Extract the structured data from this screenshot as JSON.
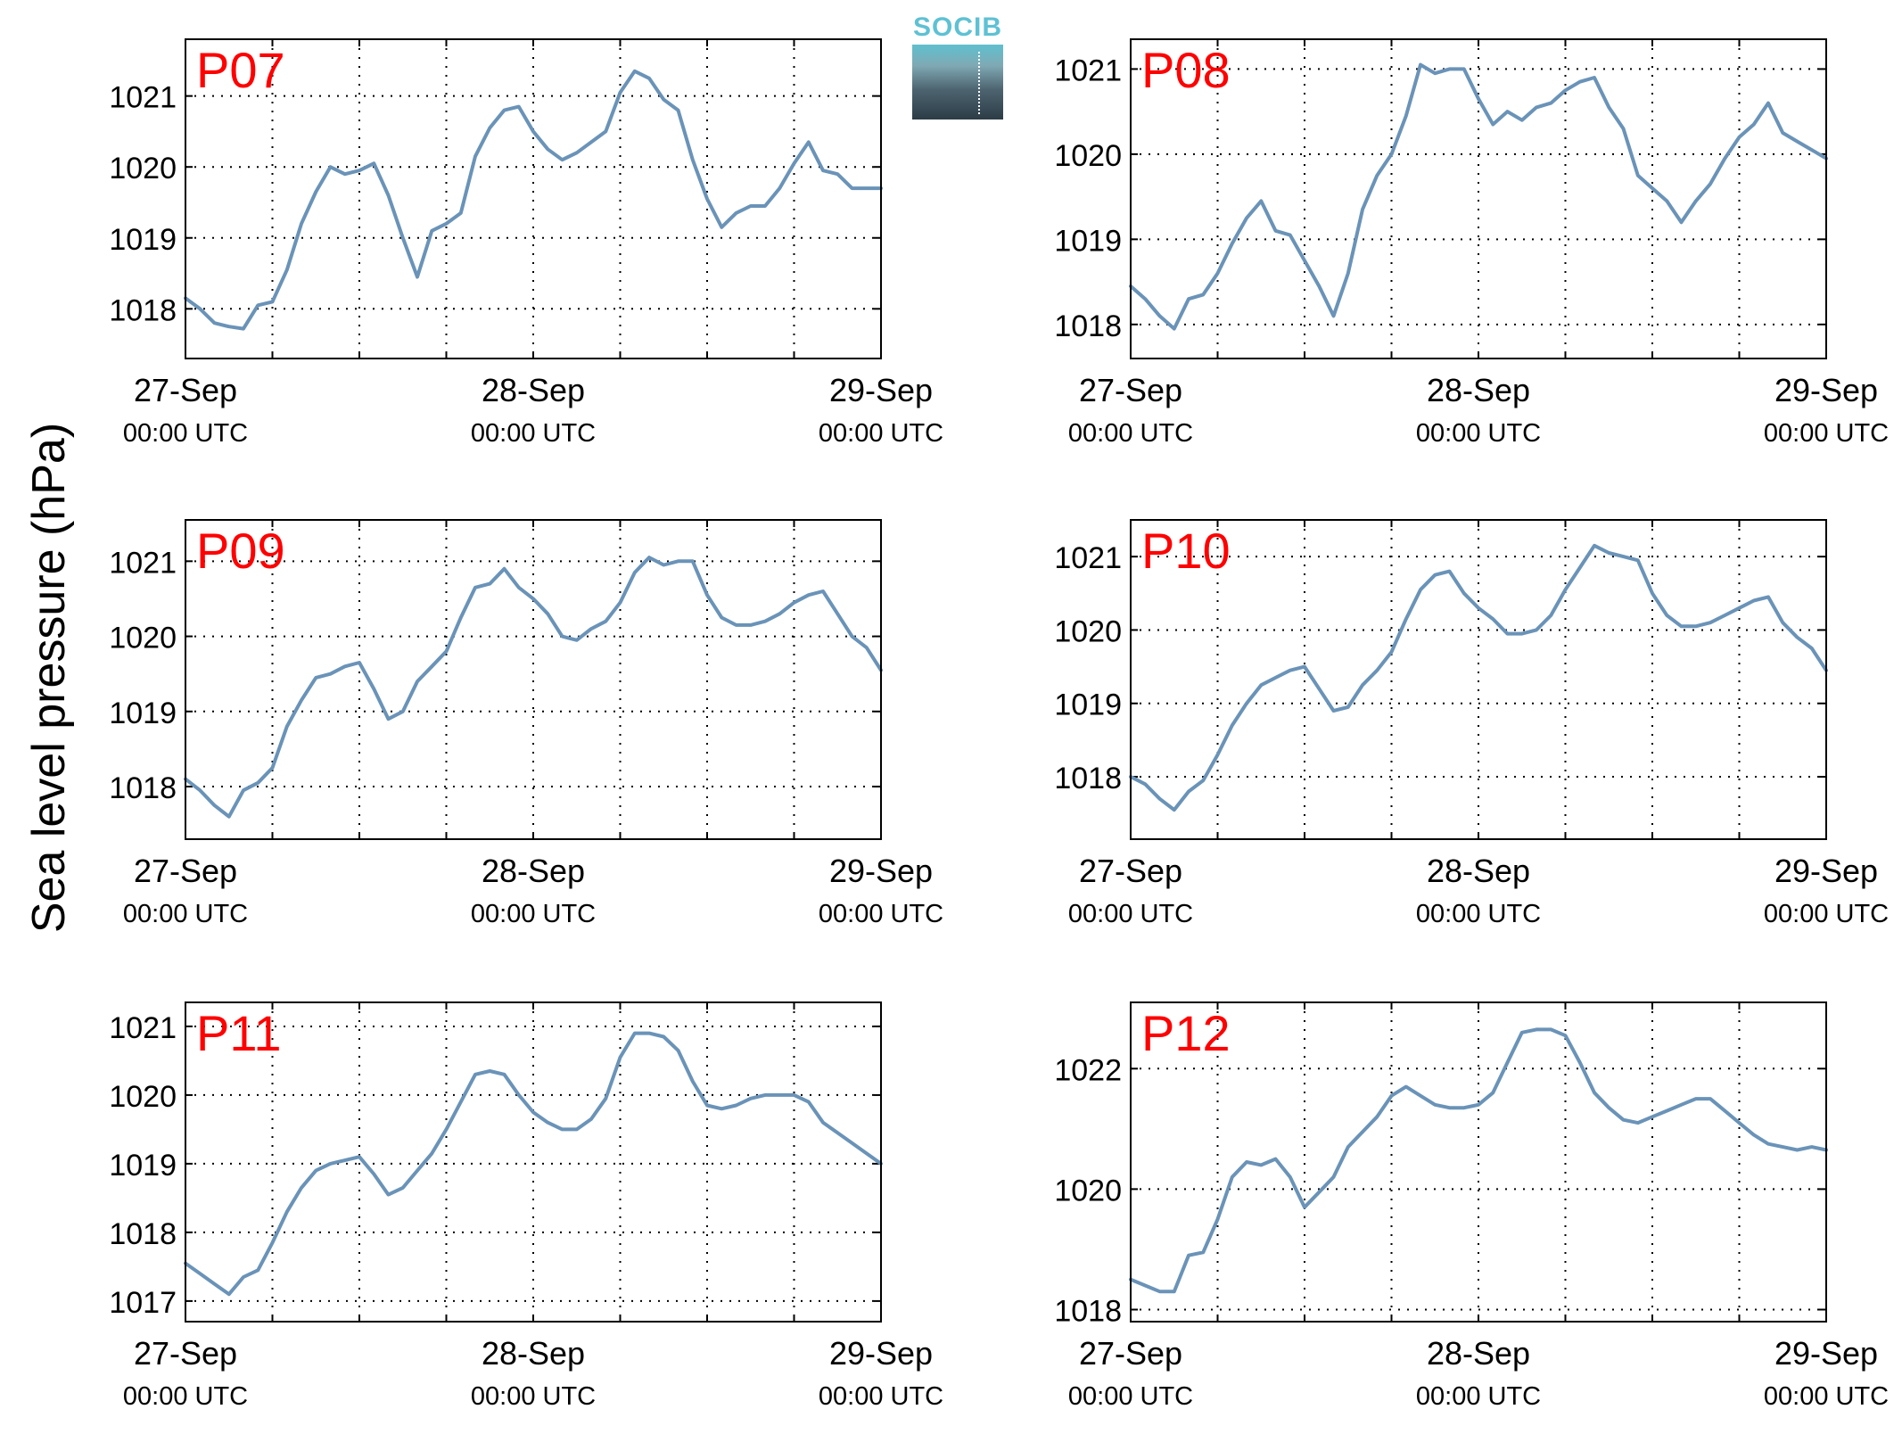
{
  "ylabel": "Sea level pressure (hPa)",
  "colors": {
    "line": "#6a93b8",
    "panel_label": "#ff0000",
    "axis": "#000000",
    "grid": "#000000"
  },
  "logo": {
    "text": "SOCIB",
    "name": "socib-logo"
  },
  "chart_data": [
    {
      "type": "line",
      "title": "P07",
      "grid": true,
      "xlabel": "",
      "ylabel": "",
      "xlim": [
        0,
        48
      ],
      "ylim": [
        1017.3,
        1021.8
      ],
      "xticks": [
        0,
        24,
        48
      ],
      "xtick_labels": [
        [
          "27-Sep",
          "00:00 UTC"
        ],
        [
          "28-Sep",
          "00:00 UTC"
        ],
        [
          "29-Sep",
          "00:00 UTC"
        ]
      ],
      "yticks": [
        1018,
        1019,
        1020,
        1021
      ],
      "x": [
        0,
        1,
        2,
        3,
        4,
        5,
        6,
        7,
        8,
        9,
        10,
        11,
        12,
        13,
        14,
        15,
        16,
        17,
        18,
        19,
        20,
        21,
        22,
        23,
        24,
        25,
        26,
        27,
        28,
        29,
        30,
        31,
        32,
        33,
        34,
        35,
        36,
        37,
        38,
        39,
        40,
        41,
        42,
        43,
        44,
        45,
        46,
        47,
        48
      ],
      "values": [
        1018.15,
        1018.0,
        1017.8,
        1017.75,
        1017.72,
        1018.05,
        1018.1,
        1018.55,
        1019.2,
        1019.65,
        1020.0,
        1019.9,
        1019.95,
        1020.05,
        1019.6,
        1019.0,
        1018.45,
        1019.1,
        1019.2,
        1019.35,
        1020.15,
        1020.55,
        1020.8,
        1020.85,
        1020.5,
        1020.25,
        1020.1,
        1020.2,
        1020.35,
        1020.5,
        1021.05,
        1021.35,
        1021.25,
        1020.95,
        1020.8,
        1020.1,
        1019.55,
        1019.15,
        1019.35,
        1019.45,
        1019.45,
        1019.7,
        1020.05,
        1020.35,
        1019.95,
        1019.9,
        1019.7,
        1019.7,
        1019.7
      ]
    },
    {
      "type": "line",
      "title": "P08",
      "grid": true,
      "xlabel": "",
      "ylabel": "",
      "xlim": [
        0,
        48
      ],
      "ylim": [
        1017.6,
        1021.35
      ],
      "xticks": [
        0,
        24,
        48
      ],
      "xtick_labels": [
        [
          "27-Sep",
          "00:00 UTC"
        ],
        [
          "28-Sep",
          "00:00 UTC"
        ],
        [
          "29-Sep",
          "00:00 UTC"
        ]
      ],
      "yticks": [
        1018,
        1019,
        1020,
        1021
      ],
      "x": [
        0,
        1,
        2,
        3,
        4,
        5,
        6,
        7,
        8,
        9,
        10,
        11,
        12,
        13,
        14,
        15,
        16,
        17,
        18,
        19,
        20,
        21,
        22,
        23,
        24,
        25,
        26,
        27,
        28,
        29,
        30,
        31,
        32,
        33,
        34,
        35,
        36,
        37,
        38,
        39,
        40,
        41,
        42,
        43,
        44,
        45,
        46,
        47,
        48
      ],
      "values": [
        1018.45,
        1018.3,
        1018.1,
        1017.95,
        1018.3,
        1018.35,
        1018.6,
        1018.95,
        1019.25,
        1019.45,
        1019.1,
        1019.05,
        1018.75,
        1018.45,
        1018.1,
        1018.6,
        1019.35,
        1019.75,
        1020.0,
        1020.45,
        1021.05,
        1020.95,
        1021.0,
        1021.0,
        1020.65,
        1020.35,
        1020.5,
        1020.4,
        1020.55,
        1020.6,
        1020.75,
        1020.85,
        1020.9,
        1020.55,
        1020.3,
        1019.75,
        1019.6,
        1019.45,
        1019.2,
        1019.45,
        1019.65,
        1019.95,
        1020.2,
        1020.35,
        1020.6,
        1020.25,
        1020.15,
        1020.05,
        1019.95
      ]
    },
    {
      "type": "line",
      "title": "P09",
      "grid": true,
      "xlabel": "",
      "ylabel": "",
      "xlim": [
        0,
        48
      ],
      "ylim": [
        1017.3,
        1021.55
      ],
      "xticks": [
        0,
        24,
        48
      ],
      "xtick_labels": [
        [
          "27-Sep",
          "00:00 UTC"
        ],
        [
          "28-Sep",
          "00:00 UTC"
        ],
        [
          "29-Sep",
          "00:00 UTC"
        ]
      ],
      "yticks": [
        1018,
        1019,
        1020,
        1021
      ],
      "x": [
        0,
        1,
        2,
        3,
        4,
        5,
        6,
        7,
        8,
        9,
        10,
        11,
        12,
        13,
        14,
        15,
        16,
        17,
        18,
        19,
        20,
        21,
        22,
        23,
        24,
        25,
        26,
        27,
        28,
        29,
        30,
        31,
        32,
        33,
        34,
        35,
        36,
        37,
        38,
        39,
        40,
        41,
        42,
        43,
        44,
        45,
        46,
        47,
        48
      ],
      "values": [
        1018.1,
        1017.95,
        1017.75,
        1017.6,
        1017.95,
        1018.05,
        1018.25,
        1018.8,
        1019.15,
        1019.45,
        1019.5,
        1019.6,
        1019.65,
        1019.3,
        1018.9,
        1019.0,
        1019.4,
        1019.6,
        1019.8,
        1020.25,
        1020.65,
        1020.7,
        1020.9,
        1020.65,
        1020.5,
        1020.3,
        1020.0,
        1019.95,
        1020.1,
        1020.2,
        1020.45,
        1020.85,
        1021.05,
        1020.95,
        1021.0,
        1021.0,
        1020.55,
        1020.25,
        1020.15,
        1020.15,
        1020.2,
        1020.3,
        1020.45,
        1020.55,
        1020.6,
        1020.3,
        1020.0,
        1019.85,
        1019.55
      ]
    },
    {
      "type": "line",
      "title": "P10",
      "grid": true,
      "xlabel": "",
      "ylabel": "",
      "xlim": [
        0,
        48
      ],
      "ylim": [
        1017.15,
        1021.5
      ],
      "xticks": [
        0,
        24,
        48
      ],
      "xtick_labels": [
        [
          "27-Sep",
          "00:00 UTC"
        ],
        [
          "28-Sep",
          "00:00 UTC"
        ],
        [
          "29-Sep",
          "00:00 UTC"
        ]
      ],
      "yticks": [
        1018,
        1019,
        1020,
        1021
      ],
      "x": [
        0,
        1,
        2,
        3,
        4,
        5,
        6,
        7,
        8,
        9,
        10,
        11,
        12,
        13,
        14,
        15,
        16,
        17,
        18,
        19,
        20,
        21,
        22,
        23,
        24,
        25,
        26,
        27,
        28,
        29,
        30,
        31,
        32,
        33,
        34,
        35,
        36,
        37,
        38,
        39,
        40,
        41,
        42,
        43,
        44,
        45,
        46,
        47,
        48
      ],
      "values": [
        1018.0,
        1017.9,
        1017.7,
        1017.55,
        1017.8,
        1017.95,
        1018.3,
        1018.7,
        1019.0,
        1019.25,
        1019.35,
        1019.45,
        1019.5,
        1019.2,
        1018.9,
        1018.95,
        1019.25,
        1019.45,
        1019.7,
        1020.15,
        1020.55,
        1020.75,
        1020.8,
        1020.5,
        1020.3,
        1020.15,
        1019.95,
        1019.95,
        1020.0,
        1020.2,
        1020.55,
        1020.85,
        1021.15,
        1021.05,
        1021.0,
        1020.95,
        1020.5,
        1020.2,
        1020.05,
        1020.05,
        1020.1,
        1020.2,
        1020.3,
        1020.4,
        1020.45,
        1020.1,
        1019.9,
        1019.75,
        1019.45
      ]
    },
    {
      "type": "line",
      "title": "P11",
      "grid": true,
      "xlabel": "",
      "ylabel": "",
      "xlim": [
        0,
        48
      ],
      "ylim": [
        1016.7,
        1021.35
      ],
      "xticks": [
        0,
        24,
        48
      ],
      "xtick_labels": [
        [
          "27-Sep",
          "00:00 UTC"
        ],
        [
          "28-Sep",
          "00:00 UTC"
        ],
        [
          "29-Sep",
          "00:00 UTC"
        ]
      ],
      "yticks": [
        1017,
        1018,
        1019,
        1020,
        1021
      ],
      "x": [
        0,
        1,
        2,
        3,
        4,
        5,
        6,
        7,
        8,
        9,
        10,
        11,
        12,
        13,
        14,
        15,
        16,
        17,
        18,
        19,
        20,
        21,
        22,
        23,
        24,
        25,
        26,
        27,
        28,
        29,
        30,
        31,
        32,
        33,
        34,
        35,
        36,
        37,
        38,
        39,
        40,
        41,
        42,
        43,
        44,
        45,
        46,
        47,
        48
      ],
      "values": [
        1017.55,
        1017.4,
        1017.25,
        1017.1,
        1017.35,
        1017.45,
        1017.85,
        1018.3,
        1018.65,
        1018.9,
        1019.0,
        1019.05,
        1019.1,
        1018.85,
        1018.55,
        1018.65,
        1018.9,
        1019.15,
        1019.5,
        1019.9,
        1020.3,
        1020.35,
        1020.3,
        1020.0,
        1019.75,
        1019.6,
        1019.5,
        1019.5,
        1019.65,
        1019.95,
        1020.55,
        1020.9,
        1020.9,
        1020.85,
        1020.65,
        1020.2,
        1019.85,
        1019.8,
        1019.85,
        1019.95,
        1020.0,
        1020.0,
        1020.0,
        1019.9,
        1019.6,
        1019.45,
        1019.3,
        1019.15,
        1019.0
      ]
    },
    {
      "type": "line",
      "title": "P12",
      "grid": true,
      "xlabel": "",
      "ylabel": "",
      "xlim": [
        0,
        48
      ],
      "ylim": [
        1017.8,
        1023.1
      ],
      "xticks": [
        0,
        24,
        48
      ],
      "xtick_labels": [
        [
          "27-Sep",
          "00:00 UTC"
        ],
        [
          "28-Sep",
          "00:00 UTC"
        ],
        [
          "29-Sep",
          "00:00 UTC"
        ]
      ],
      "yticks": [
        1018,
        1020,
        1022
      ],
      "x": [
        0,
        1,
        2,
        3,
        4,
        5,
        6,
        7,
        8,
        9,
        10,
        11,
        12,
        13,
        14,
        15,
        16,
        17,
        18,
        19,
        20,
        21,
        22,
        23,
        24,
        25,
        26,
        27,
        28,
        29,
        30,
        31,
        32,
        33,
        34,
        35,
        36,
        37,
        38,
        39,
        40,
        41,
        42,
        43,
        44,
        45,
        46,
        47,
        48
      ],
      "values": [
        1018.5,
        1018.4,
        1018.3,
        1018.3,
        1018.9,
        1018.95,
        1019.5,
        1020.2,
        1020.45,
        1020.4,
        1020.5,
        1020.2,
        1019.7,
        1019.95,
        1020.2,
        1020.7,
        1020.95,
        1021.2,
        1021.55,
        1021.7,
        1021.55,
        1021.4,
        1021.35,
        1021.35,
        1021.4,
        1021.6,
        1022.1,
        1022.6,
        1022.65,
        1022.65,
        1022.55,
        1022.1,
        1021.6,
        1021.35,
        1021.15,
        1021.1,
        1021.2,
        1021.3,
        1021.4,
        1021.5,
        1021.5,
        1021.3,
        1021.1,
        1020.9,
        1020.75,
        1020.7,
        1020.65,
        1020.7,
        1020.65
      ]
    }
  ]
}
